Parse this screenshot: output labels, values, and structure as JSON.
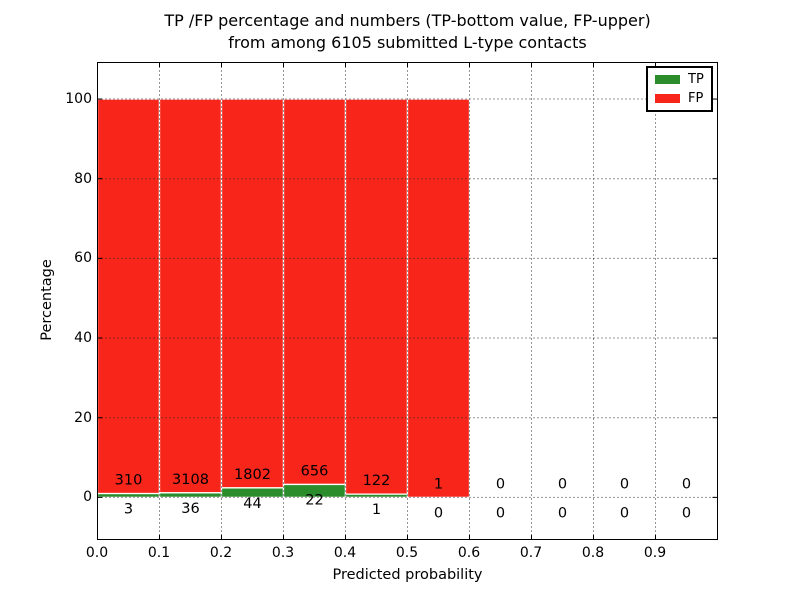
{
  "figure": {
    "title_line1": "TP /FP percentage and numbers (TP-bottom value, FP-upper)",
    "title_line2": "from among 6105 submitted L-type contacts"
  },
  "chart_data": {
    "type": "bar",
    "stacked": true,
    "normalized": "each bar scaled to 100%, green TP share at bottom, red FP share above",
    "title": "TP /FP percentage and numbers (TP-bottom value, FP-upper) from among 6105 submitted L-type contacts",
    "xlabel": "Predicted probability",
    "ylabel": "Percentage",
    "xlim": [
      0.0,
      1.0
    ],
    "ylim": [
      -10.7,
      109.3
    ],
    "bin_width": 0.1,
    "xticks": [
      0.0,
      0.1,
      0.2,
      0.3,
      0.4,
      0.5,
      0.6,
      0.7,
      0.8,
      0.9
    ],
    "xtick_labels": [
      "0.0",
      "0.1",
      "0.2",
      "0.3",
      "0.4",
      "0.5",
      "0.6",
      "0.7",
      "0.8",
      "0.9"
    ],
    "yticks": [
      0,
      20,
      40,
      60,
      80,
      100
    ],
    "ytick_labels": [
      "0",
      "20",
      "40",
      "60",
      "80",
      "100"
    ],
    "grid": "dotted",
    "legend_position": "upper right",
    "total_contacts": 6105,
    "series": [
      {
        "name": "TP",
        "color": "#2a8c2a",
        "counts": [
          3,
          36,
          44,
          22,
          1,
          0,
          0,
          0,
          0,
          0
        ]
      },
      {
        "name": "FP",
        "color": "#f8251b",
        "counts": [
          310,
          3108,
          1802,
          656,
          122,
          1,
          0,
          0,
          0,
          0
        ]
      }
    ]
  },
  "legend": {
    "items": [
      {
        "label": "TP",
        "color": "#2a8c2a"
      },
      {
        "label": "FP",
        "color": "#f8251b"
      }
    ]
  },
  "colors": {
    "tp_green": "#2a8c2a",
    "fp_red": "#f8251b",
    "bar_edge": "#ffffff",
    "grid": "#2a2a2a",
    "spine": "#000000",
    "background": "#ffffff"
  }
}
